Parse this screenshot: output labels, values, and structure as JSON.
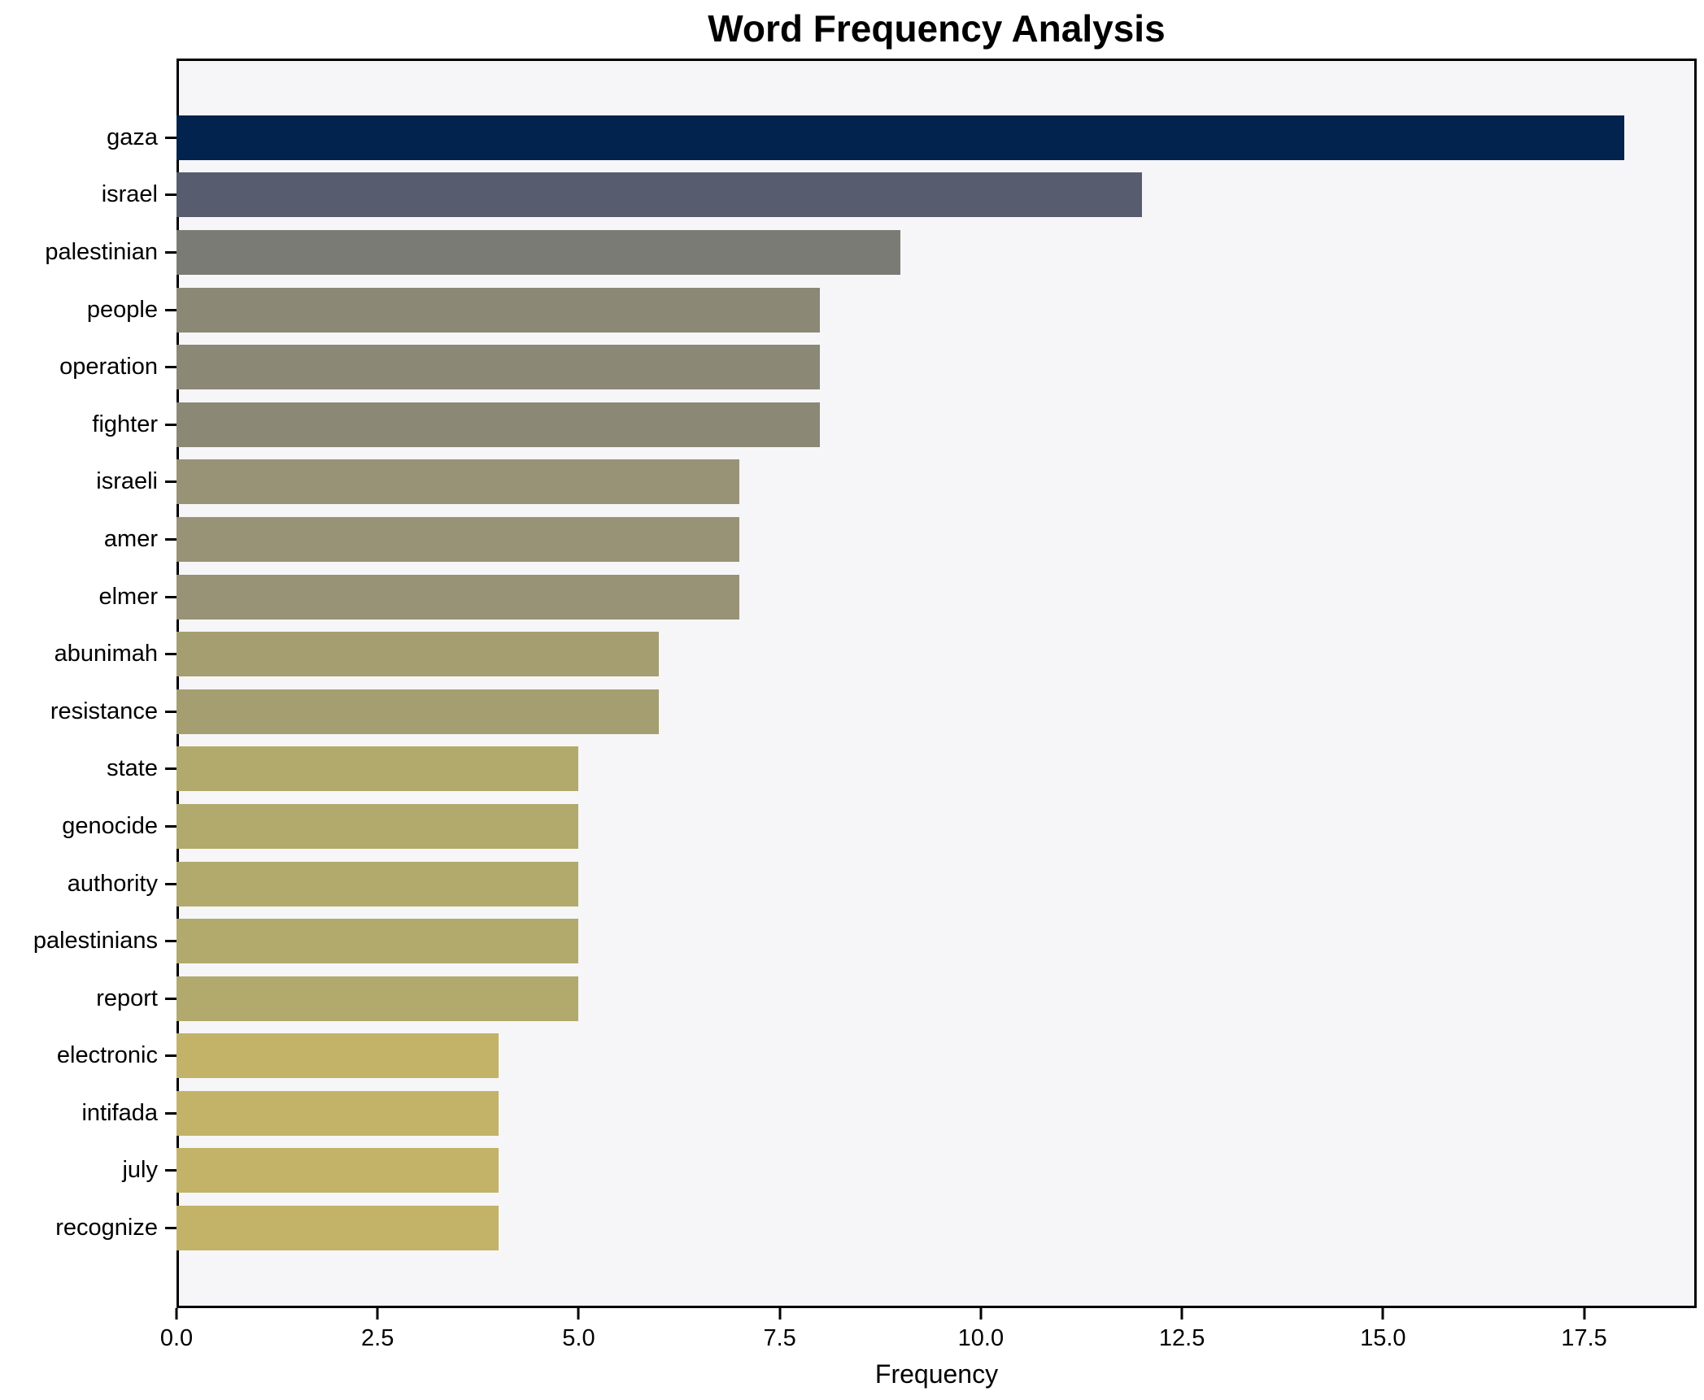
{
  "title": "Word Frequency Analysis",
  "chart_data": {
    "type": "bar",
    "orientation": "horizontal",
    "title": "Word Frequency Analysis",
    "xlabel": "Frequency",
    "ylabel": "",
    "categories": [
      "gaza",
      "israel",
      "palestinian",
      "people",
      "operation",
      "fighter",
      "israeli",
      "amer",
      "elmer",
      "abunimah",
      "resistance",
      "state",
      "genocide",
      "authority",
      "palestinians",
      "report",
      "electronic",
      "intifada",
      "july",
      "recognize"
    ],
    "values": [
      18,
      12,
      9,
      8,
      8,
      8,
      7,
      7,
      7,
      6,
      6,
      5,
      5,
      5,
      5,
      5,
      4,
      4,
      4,
      4
    ],
    "bar_colors": [
      "#02234d",
      "#575d6e",
      "#7b7b75",
      "#8b8876",
      "#8b8876",
      "#8b8876",
      "#989276",
      "#989276",
      "#989276",
      "#a59e71",
      "#a59e71",
      "#b2aa6c",
      "#b2aa6c",
      "#b2aa6c",
      "#b2aa6c",
      "#b2aa6c",
      "#c3b368",
      "#c3b368",
      "#c3b368",
      "#c3b368"
    ],
    "colormap": "cividis",
    "xlim": [
      0,
      18.9
    ],
    "xticks": [
      0,
      2.5,
      5,
      7.5,
      10,
      12.5,
      15,
      17.5
    ],
    "xtick_labels": [
      "0.0",
      "2.5",
      "5.0",
      "7.5",
      "10.0",
      "12.5",
      "15.0",
      "17.5"
    ],
    "grid": false,
    "legend_position": "none",
    "plot_background": "#f6f6f8",
    "figure_background": "#ffffff",
    "spine_color": "#000000"
  }
}
